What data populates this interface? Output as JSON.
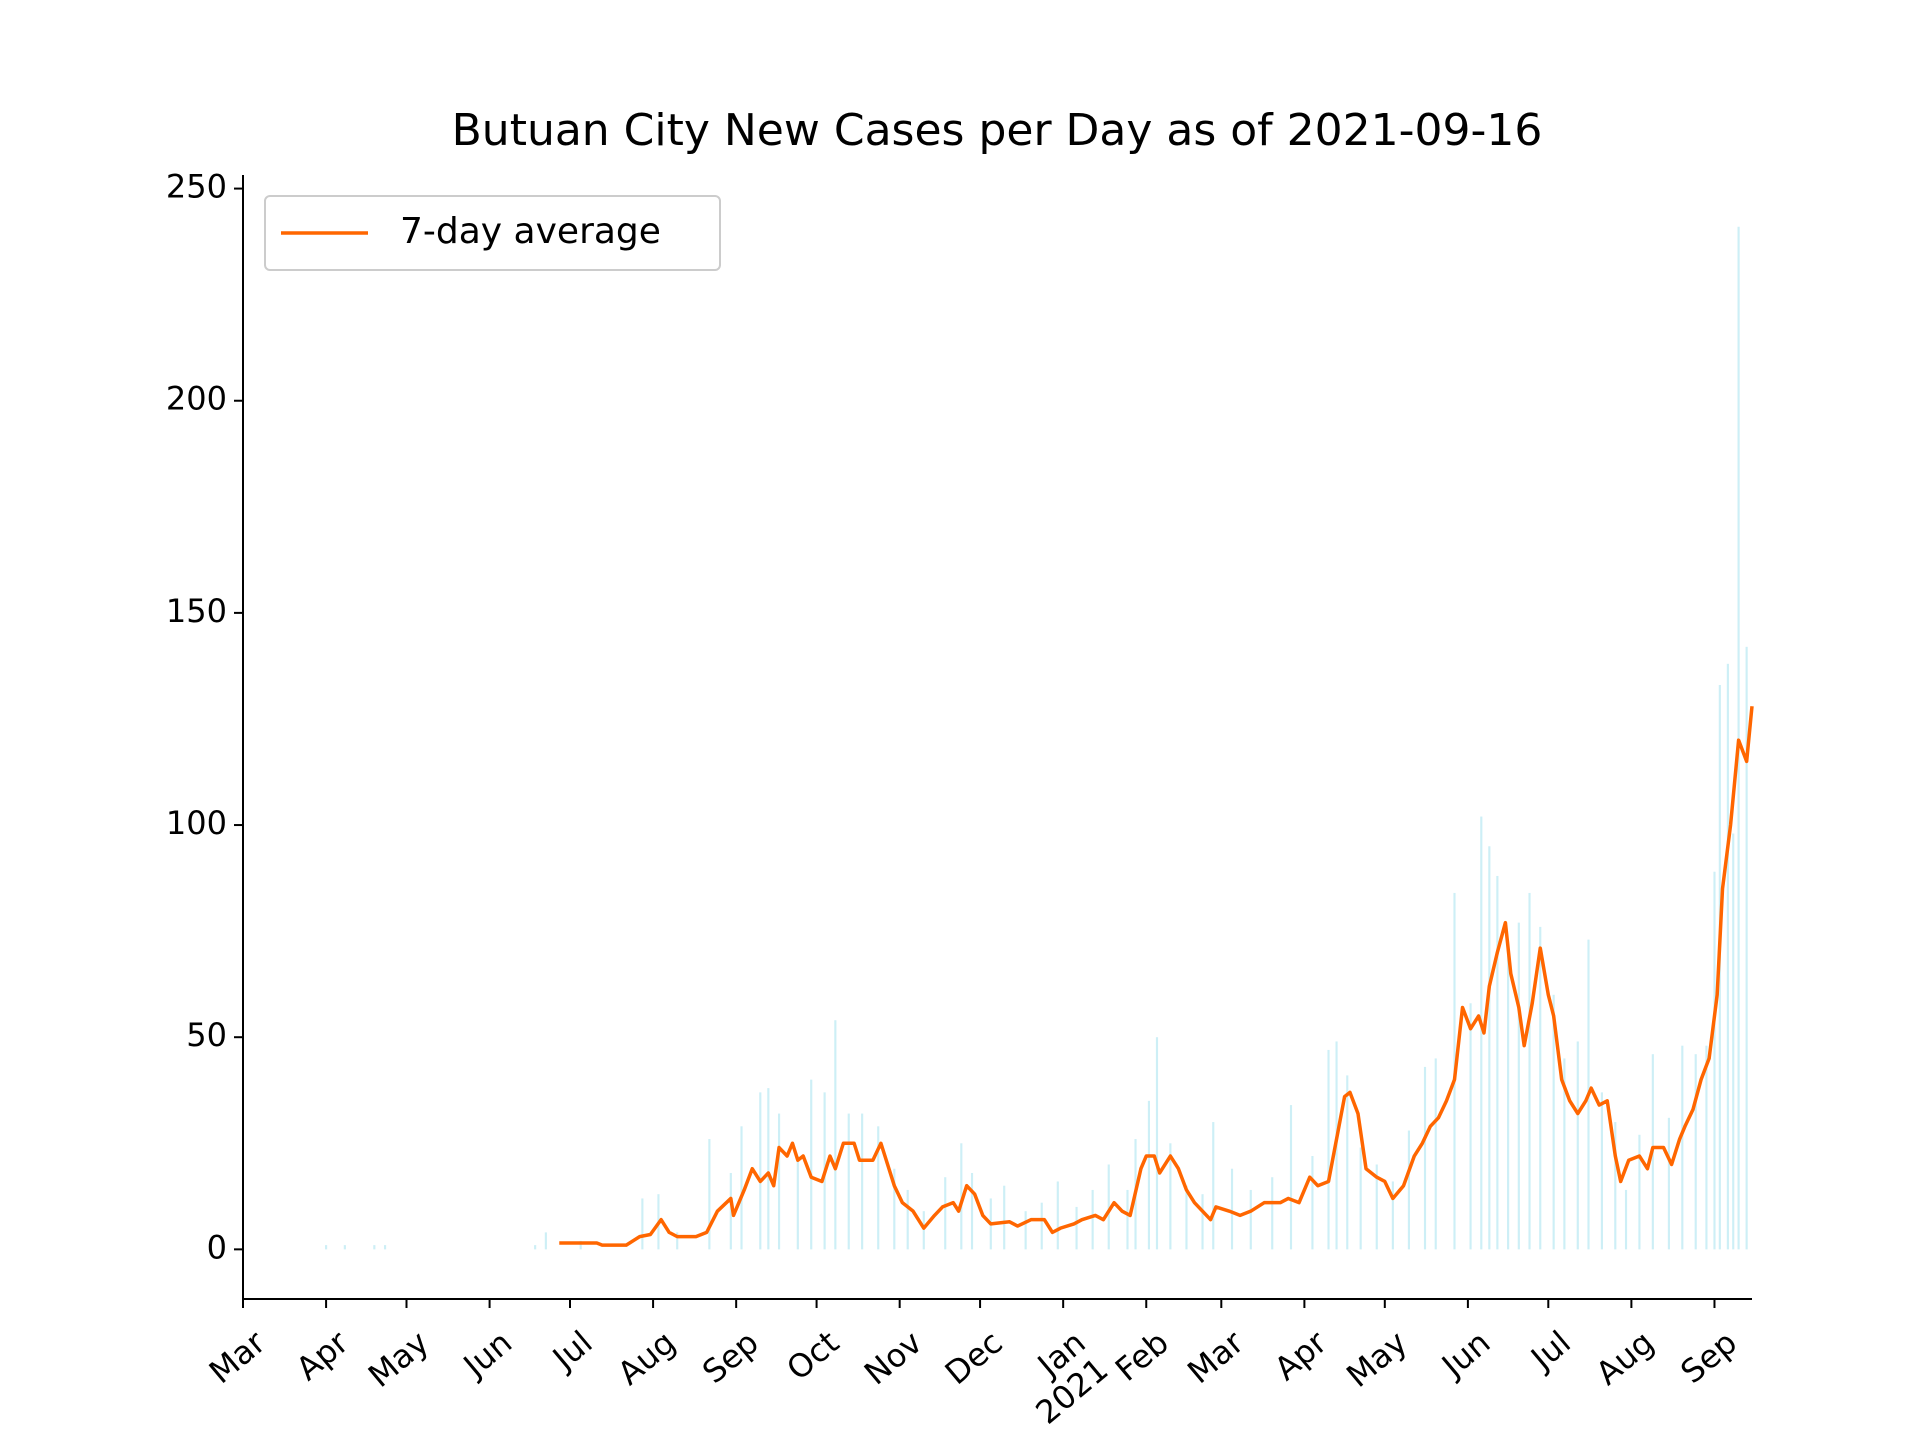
{
  "chart_data": {
    "type": "bar-line",
    "title": "Butuan City New Cases per Day as of 2021-09-16",
    "xlim": [
      "2020-03-01",
      "2021-09-15"
    ],
    "ylim": [
      -11.7,
      253.2
    ],
    "yticks": [
      0,
      50,
      100,
      150,
      200,
      250
    ],
    "xticks": [
      {
        "value": "2020-03-01",
        "label": "Mar"
      },
      {
        "value": "2020-04-01",
        "label": "Apr"
      },
      {
        "value": "2020-05-01",
        "label": "May"
      },
      {
        "value": "2020-06-01",
        "label": "Jun"
      },
      {
        "value": "2020-07-01",
        "label": "Jul"
      },
      {
        "value": "2020-08-01",
        "label": "Aug"
      },
      {
        "value": "2020-09-01",
        "label": "Sep"
      },
      {
        "value": "2020-10-01",
        "label": "Oct"
      },
      {
        "value": "2020-11-01",
        "label": "Nov"
      },
      {
        "value": "2020-12-01",
        "label": "Dec"
      },
      {
        "value": "2021-01-01",
        "label": "Jan 2021"
      },
      {
        "value": "2021-02-01",
        "label": "Feb"
      },
      {
        "value": "2021-03-01",
        "label": "Mar"
      },
      {
        "value": "2021-04-01",
        "label": "Apr"
      },
      {
        "value": "2021-05-01",
        "label": "May"
      },
      {
        "value": "2021-06-01",
        "label": "Jun"
      },
      {
        "value": "2021-07-01",
        "label": "Jul"
      },
      {
        "value": "2021-08-01",
        "label": "Aug"
      },
      {
        "value": "2021-09-01",
        "label": "Sep"
      }
    ],
    "legend": "upper left",
    "bars": {
      "color": "#cdeff6",
      "x": [
        "2020-04-01",
        "2020-04-08",
        "2020-04-19",
        "2020-04-23",
        "2020-06-18",
        "2020-06-22",
        "2020-07-05",
        "2020-07-28",
        "2020-08-03",
        "2020-08-10",
        "2020-08-22",
        "2020-08-30",
        "2020-09-03",
        "2020-09-10",
        "2020-09-13",
        "2020-09-17",
        "2020-09-24",
        "2020-09-29",
        "2020-10-04",
        "2020-10-08",
        "2020-10-13",
        "2020-10-18",
        "2020-10-24",
        "2020-10-30",
        "2020-11-04",
        "2020-11-10",
        "2020-11-18",
        "2020-11-24",
        "2020-11-28",
        "2020-12-05",
        "2020-12-10",
        "2020-12-18",
        "2020-12-24",
        "2020-12-30",
        "2021-01-06",
        "2021-01-12",
        "2021-01-18",
        "2021-01-25",
        "2021-01-28",
        "2021-02-02",
        "2021-02-05",
        "2021-02-10",
        "2021-02-16",
        "2021-02-22",
        "2021-02-26",
        "2021-03-05",
        "2021-03-12",
        "2021-03-20",
        "2021-03-27",
        "2021-04-04",
        "2021-04-10",
        "2021-04-13",
        "2021-04-17",
        "2021-04-22",
        "2021-04-28",
        "2021-05-04",
        "2021-05-10",
        "2021-05-16",
        "2021-05-20",
        "2021-05-27",
        "2021-06-02",
        "2021-06-06",
        "2021-06-09",
        "2021-06-12",
        "2021-06-16",
        "2021-06-20",
        "2021-06-24",
        "2021-06-28",
        "2021-07-03",
        "2021-07-07",
        "2021-07-12",
        "2021-07-16",
        "2021-07-21",
        "2021-07-26",
        "2021-07-30",
        "2021-08-04",
        "2021-08-09",
        "2021-08-15",
        "2021-08-20",
        "2021-08-25",
        "2021-08-29",
        "2021-09-01",
        "2021-09-03",
        "2021-09-06",
        "2021-09-08",
        "2021-09-10",
        "2021-09-13"
      ],
      "values": [
        1,
        1,
        1,
        1,
        1,
        4,
        2,
        12,
        13,
        4,
        26,
        18,
        29,
        37,
        38,
        32,
        22,
        40,
        37,
        54,
        32,
        32,
        29,
        19,
        14,
        9,
        17,
        25,
        18,
        12,
        15,
        9,
        11,
        16,
        10,
        14,
        20,
        14,
        26,
        35,
        50,
        25,
        15,
        13,
        30,
        19,
        14,
        17,
        34,
        22,
        47,
        49,
        41,
        24,
        20,
        16,
        28,
        43,
        45,
        84,
        58,
        102,
        95,
        88,
        70,
        77,
        84,
        76,
        60,
        45,
        49,
        73,
        37,
        30,
        14,
        27,
        46,
        31,
        48,
        46,
        48,
        89,
        133,
        138,
        98,
        241,
        142
      ]
    },
    "series": [
      {
        "name": "7-day average",
        "color": "#ff6600",
        "x": [
          "2020-06-27",
          "2020-07-11",
          "2020-07-13",
          "2020-07-22",
          "2020-07-27",
          "2020-07-31",
          "2020-08-04",
          "2020-08-07",
          "2020-08-10",
          "2020-08-17",
          "2020-08-21",
          "2020-08-25",
          "2020-08-30",
          "2020-08-31",
          "2020-09-04",
          "2020-09-07",
          "2020-09-10",
          "2020-09-13",
          "2020-09-15",
          "2020-09-17",
          "2020-09-20",
          "2020-09-22",
          "2020-09-24",
          "2020-09-26",
          "2020-09-29",
          "2020-10-03",
          "2020-10-06",
          "2020-10-08",
          "2020-10-11",
          "2020-10-15",
          "2020-10-17",
          "2020-10-22",
          "2020-10-25",
          "2020-10-27",
          "2020-10-30",
          "2020-11-02",
          "2020-11-06",
          "2020-11-10",
          "2020-11-14",
          "2020-11-17",
          "2020-11-21",
          "2020-11-23",
          "2020-11-26",
          "2020-11-29",
          "2020-12-02",
          "2020-12-05",
          "2020-12-12",
          "2020-12-15",
          "2020-12-20",
          "2020-12-25",
          "2020-12-28",
          "2020-12-31",
          "2021-01-05",
          "2021-01-08",
          "2021-01-13",
          "2021-01-16",
          "2021-01-20",
          "2021-01-23",
          "2021-01-26",
          "2021-01-30",
          "2021-02-01",
          "2021-02-04",
          "2021-02-06",
          "2021-02-10",
          "2021-02-13",
          "2021-02-16",
          "2021-02-19",
          "2021-02-22",
          "2021-02-25",
          "2021-02-27",
          "2021-03-04",
          "2021-03-08",
          "2021-03-12",
          "2021-03-17",
          "2021-03-23",
          "2021-03-26",
          "2021-03-30",
          "2021-04-03",
          "2021-04-06",
          "2021-04-10",
          "2021-04-13",
          "2021-04-16",
          "2021-04-18",
          "2021-04-21",
          "2021-04-24",
          "2021-04-28",
          "2021-05-01",
          "2021-05-04",
          "2021-05-08",
          "2021-05-12",
          "2021-05-15",
          "2021-05-18",
          "2021-05-21",
          "2021-05-24",
          "2021-05-27",
          "2021-05-30",
          "2021-06-02",
          "2021-06-05",
          "2021-06-07",
          "2021-06-09",
          "2021-06-12",
          "2021-06-15",
          "2021-06-17",
          "2021-06-20",
          "2021-06-22",
          "2021-06-25",
          "2021-06-28",
          "2021-07-01",
          "2021-07-03",
          "2021-07-06",
          "2021-07-09",
          "2021-07-12",
          "2021-07-15",
          "2021-07-17",
          "2021-07-20",
          "2021-07-23",
          "2021-07-26",
          "2021-07-28",
          "2021-07-31",
          "2021-08-04",
          "2021-08-07",
          "2021-08-09",
          "2021-08-13",
          "2021-08-16",
          "2021-08-19",
          "2021-08-21",
          "2021-08-24",
          "2021-08-27",
          "2021-08-30",
          "2021-09-02",
          "2021-09-04",
          "2021-09-07",
          "2021-09-10",
          "2021-09-13",
          "2021-09-15"
        ],
        "values": [
          1.5,
          1.5,
          1,
          1,
          3,
          3.5,
          7,
          4,
          3,
          3,
          4,
          9,
          12,
          8,
          14,
          19,
          16,
          18,
          15,
          24,
          22,
          25,
          21,
          22,
          17,
          16,
          22,
          19,
          25,
          25,
          21,
          21,
          25,
          21,
          15,
          11,
          9,
          5,
          8,
          10,
          11,
          9,
          15,
          13,
          8,
          6,
          6.5,
          5.5,
          7,
          7,
          4,
          5,
          6,
          7,
          8,
          7,
          11,
          9,
          8,
          19,
          22,
          22,
          18,
          22,
          19,
          14,
          11,
          9,
          7,
          10,
          9,
          8,
          9,
          11,
          11,
          12,
          11,
          17,
          15,
          16,
          26,
          36,
          37,
          32,
          19,
          17,
          16,
          12,
          15,
          22,
          25,
          29,
          31,
          35,
          40,
          57,
          52,
          55,
          51,
          62,
          70,
          77,
          65,
          57,
          48,
          58,
          71,
          60,
          55,
          40,
          35,
          32,
          35,
          38,
          34,
          35,
          22,
          16,
          21,
          22,
          19,
          24,
          24,
          20,
          26,
          29,
          33,
          40,
          45,
          60,
          85,
          100,
          120,
          115,
          128
        ]
      }
    ]
  }
}
